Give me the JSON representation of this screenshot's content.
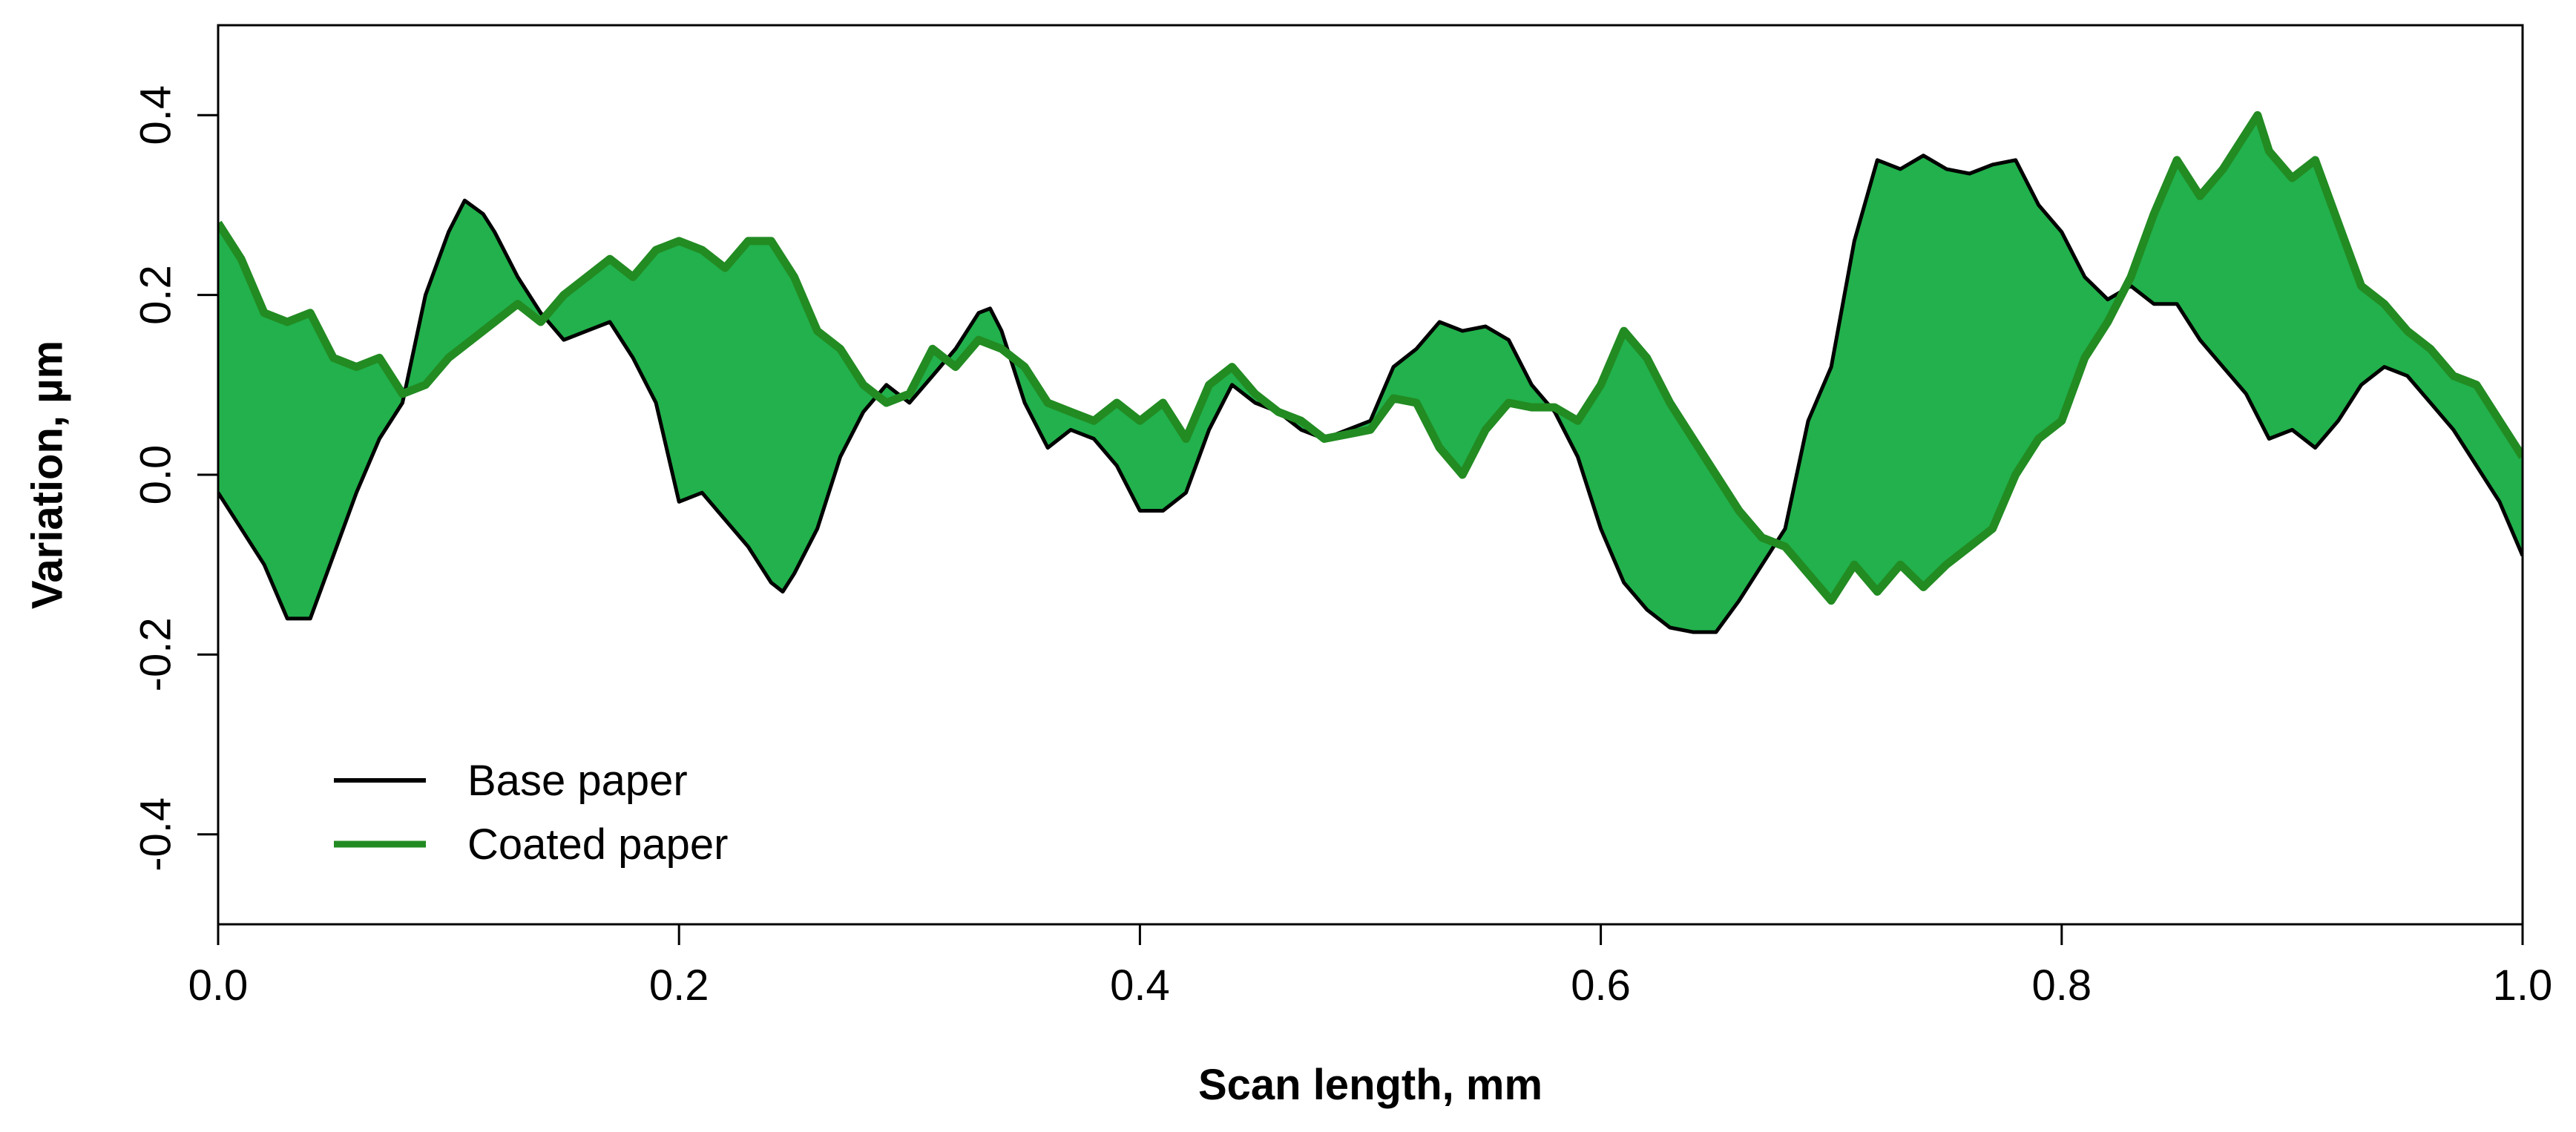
{
  "chart_data": {
    "type": "line",
    "title": "",
    "xlabel": "Scan length, mm",
    "ylabel": "Variation, µm",
    "xlim": [
      0,
      1.0
    ],
    "ylim": [
      -0.5,
      0.5
    ],
    "x_ticks": [
      0.0,
      0.2,
      0.4,
      0.6,
      0.8,
      1.0
    ],
    "x_tick_labels": [
      "0.0",
      "0.2",
      "0.4",
      "0.6",
      "0.8",
      "1.0"
    ],
    "y_ticks": [
      -0.4,
      -0.2,
      0.0,
      0.2,
      0.4
    ],
    "y_tick_labels": [
      "-0.4",
      "-0.2",
      "0.0",
      "0.2",
      "0.4"
    ],
    "grid": false,
    "legend_position": "bottom-left",
    "fill_between_series": true,
    "fill_color": "#22b14c",
    "series": [
      {
        "name": "Base paper",
        "color": "#000000",
        "points": [
          [
            0.0,
            -0.02
          ],
          [
            0.01,
            -0.06
          ],
          [
            0.02,
            -0.1
          ],
          [
            0.03,
            -0.16
          ],
          [
            0.04,
            -0.16
          ],
          [
            0.05,
            -0.09
          ],
          [
            0.06,
            -0.02
          ],
          [
            0.07,
            0.04
          ],
          [
            0.08,
            0.08
          ],
          [
            0.09,
            0.2
          ],
          [
            0.1,
            0.27
          ],
          [
            0.107,
            0.305
          ],
          [
            0.115,
            0.29
          ],
          [
            0.12,
            0.27
          ],
          [
            0.13,
            0.22
          ],
          [
            0.14,
            0.18
          ],
          [
            0.15,
            0.15
          ],
          [
            0.16,
            0.16
          ],
          [
            0.17,
            0.17
          ],
          [
            0.18,
            0.13
          ],
          [
            0.19,
            0.08
          ],
          [
            0.2,
            -0.03
          ],
          [
            0.21,
            -0.02
          ],
          [
            0.22,
            -0.05
          ],
          [
            0.23,
            -0.08
          ],
          [
            0.24,
            -0.12
          ],
          [
            0.245,
            -0.13
          ],
          [
            0.25,
            -0.11
          ],
          [
            0.26,
            -0.06
          ],
          [
            0.27,
            0.02
          ],
          [
            0.28,
            0.07
          ],
          [
            0.29,
            0.1
          ],
          [
            0.3,
            0.08
          ],
          [
            0.31,
            0.11
          ],
          [
            0.32,
            0.14
          ],
          [
            0.33,
            0.18
          ],
          [
            0.335,
            0.185
          ],
          [
            0.34,
            0.16
          ],
          [
            0.35,
            0.08
          ],
          [
            0.36,
            0.03
          ],
          [
            0.37,
            0.05
          ],
          [
            0.38,
            0.04
          ],
          [
            0.39,
            0.01
          ],
          [
            0.4,
            -0.04
          ],
          [
            0.41,
            -0.04
          ],
          [
            0.42,
            -0.02
          ],
          [
            0.43,
            0.05
          ],
          [
            0.44,
            0.1
          ],
          [
            0.45,
            0.08
          ],
          [
            0.46,
            0.07
          ],
          [
            0.47,
            0.05
          ],
          [
            0.48,
            0.04
          ],
          [
            0.49,
            0.05
          ],
          [
            0.5,
            0.06
          ],
          [
            0.51,
            0.12
          ],
          [
            0.52,
            0.14
          ],
          [
            0.53,
            0.17
          ],
          [
            0.54,
            0.16
          ],
          [
            0.55,
            0.165
          ],
          [
            0.56,
            0.15
          ],
          [
            0.57,
            0.1
          ],
          [
            0.58,
            0.07
          ],
          [
            0.59,
            0.02
          ],
          [
            0.6,
            -0.06
          ],
          [
            0.61,
            -0.12
          ],
          [
            0.62,
            -0.15
          ],
          [
            0.63,
            -0.17
          ],
          [
            0.64,
            -0.175
          ],
          [
            0.65,
            -0.175
          ],
          [
            0.66,
            -0.14
          ],
          [
            0.67,
            -0.1
          ],
          [
            0.68,
            -0.06
          ],
          [
            0.69,
            0.06
          ],
          [
            0.7,
            0.12
          ],
          [
            0.71,
            0.26
          ],
          [
            0.72,
            0.35
          ],
          [
            0.73,
            0.34
          ],
          [
            0.74,
            0.355
          ],
          [
            0.75,
            0.34
          ],
          [
            0.76,
            0.335
          ],
          [
            0.77,
            0.345
          ],
          [
            0.78,
            0.35
          ],
          [
            0.79,
            0.3
          ],
          [
            0.8,
            0.27
          ],
          [
            0.81,
            0.22
          ],
          [
            0.82,
            0.195
          ],
          [
            0.83,
            0.21
          ],
          [
            0.84,
            0.19
          ],
          [
            0.85,
            0.19
          ],
          [
            0.86,
            0.15
          ],
          [
            0.87,
            0.12
          ],
          [
            0.88,
            0.09
          ],
          [
            0.89,
            0.04
          ],
          [
            0.9,
            0.05
          ],
          [
            0.91,
            0.03
          ],
          [
            0.92,
            0.06
          ],
          [
            0.93,
            0.1
          ],
          [
            0.94,
            0.12
          ],
          [
            0.95,
            0.11
          ],
          [
            0.96,
            0.08
          ],
          [
            0.97,
            0.05
          ],
          [
            0.98,
            0.01
          ],
          [
            0.99,
            -0.03
          ],
          [
            1.0,
            -0.09
          ]
        ]
      },
      {
        "name": "Coated paper",
        "color": "#228b22",
        "points": [
          [
            0.0,
            0.28
          ],
          [
            0.01,
            0.24
          ],
          [
            0.02,
            0.18
          ],
          [
            0.03,
            0.17
          ],
          [
            0.04,
            0.18
          ],
          [
            0.05,
            0.13
          ],
          [
            0.06,
            0.12
          ],
          [
            0.07,
            0.13
          ],
          [
            0.08,
            0.09
          ],
          [
            0.09,
            0.1
          ],
          [
            0.1,
            0.13
          ],
          [
            0.11,
            0.15
          ],
          [
            0.12,
            0.17
          ],
          [
            0.13,
            0.19
          ],
          [
            0.14,
            0.17
          ],
          [
            0.15,
            0.2
          ],
          [
            0.16,
            0.22
          ],
          [
            0.17,
            0.24
          ],
          [
            0.18,
            0.22
          ],
          [
            0.19,
            0.25
          ],
          [
            0.2,
            0.26
          ],
          [
            0.21,
            0.25
          ],
          [
            0.22,
            0.23
          ],
          [
            0.23,
            0.26
          ],
          [
            0.24,
            0.26
          ],
          [
            0.25,
            0.22
          ],
          [
            0.26,
            0.16
          ],
          [
            0.27,
            0.14
          ],
          [
            0.28,
            0.1
          ],
          [
            0.29,
            0.08
          ],
          [
            0.3,
            0.09
          ],
          [
            0.31,
            0.14
          ],
          [
            0.32,
            0.12
          ],
          [
            0.33,
            0.15
          ],
          [
            0.34,
            0.14
          ],
          [
            0.35,
            0.12
          ],
          [
            0.36,
            0.08
          ],
          [
            0.37,
            0.07
          ],
          [
            0.38,
            0.06
          ],
          [
            0.39,
            0.08
          ],
          [
            0.4,
            0.06
          ],
          [
            0.41,
            0.08
          ],
          [
            0.42,
            0.04
          ],
          [
            0.43,
            0.1
          ],
          [
            0.44,
            0.12
          ],
          [
            0.45,
            0.09
          ],
          [
            0.46,
            0.07
          ],
          [
            0.47,
            0.06
          ],
          [
            0.48,
            0.04
          ],
          [
            0.49,
            0.045
          ],
          [
            0.5,
            0.05
          ],
          [
            0.51,
            0.085
          ],
          [
            0.52,
            0.08
          ],
          [
            0.53,
            0.03
          ],
          [
            0.54,
            0.0
          ],
          [
            0.55,
            0.05
          ],
          [
            0.56,
            0.08
          ],
          [
            0.57,
            0.075
          ],
          [
            0.58,
            0.075
          ],
          [
            0.59,
            0.06
          ],
          [
            0.6,
            0.1
          ],
          [
            0.61,
            0.16
          ],
          [
            0.62,
            0.13
          ],
          [
            0.63,
            0.08
          ],
          [
            0.64,
            0.04
          ],
          [
            0.65,
            0.0
          ],
          [
            0.66,
            -0.04
          ],
          [
            0.67,
            -0.07
          ],
          [
            0.68,
            -0.08
          ],
          [
            0.69,
            -0.11
          ],
          [
            0.7,
            -0.14
          ],
          [
            0.71,
            -0.1
          ],
          [
            0.72,
            -0.13
          ],
          [
            0.73,
            -0.1
          ],
          [
            0.74,
            -0.125
          ],
          [
            0.75,
            -0.1
          ],
          [
            0.76,
            -0.08
          ],
          [
            0.77,
            -0.06
          ],
          [
            0.78,
            0.0
          ],
          [
            0.79,
            0.04
          ],
          [
            0.8,
            0.06
          ],
          [
            0.81,
            0.13
          ],
          [
            0.82,
            0.17
          ],
          [
            0.83,
            0.22
          ],
          [
            0.84,
            0.29
          ],
          [
            0.85,
            0.35
          ],
          [
            0.86,
            0.31
          ],
          [
            0.87,
            0.34
          ],
          [
            0.88,
            0.38
          ],
          [
            0.885,
            0.4
          ],
          [
            0.89,
            0.36
          ],
          [
            0.9,
            0.33
          ],
          [
            0.91,
            0.35
          ],
          [
            0.92,
            0.28
          ],
          [
            0.93,
            0.21
          ],
          [
            0.94,
            0.19
          ],
          [
            0.95,
            0.16
          ],
          [
            0.96,
            0.14
          ],
          [
            0.97,
            0.11
          ],
          [
            0.98,
            0.1
          ],
          [
            0.99,
            0.06
          ],
          [
            1.0,
            0.02
          ]
        ]
      }
    ]
  }
}
